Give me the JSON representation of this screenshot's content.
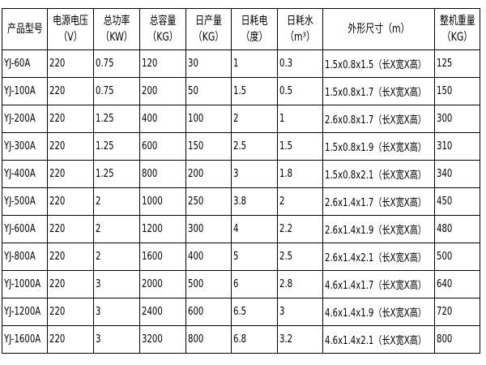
{
  "table": {
    "header": [
      [
        "产品型号"
      ],
      [
        "电源电压",
        "（V）"
      ],
      [
        "总功率",
        "（KW）"
      ],
      [
        "总容量",
        "（KG）"
      ],
      [
        "日产量",
        "（KG）"
      ],
      [
        "日耗电",
        "（度）"
      ],
      [
        "日耗水",
        "（m³）"
      ],
      [
        "外形尺寸（m）"
      ],
      [
        "整机重量",
        "（KG）"
      ]
    ],
    "rows": [
      [
        "YJ-60A",
        "220",
        "0.75",
        "120",
        "30",
        "1",
        "0.3",
        "1.5x0.8x1.5（长X宽X高）",
        "125"
      ],
      [
        "YJ-100A",
        "220",
        "0.75",
        "200",
        "50",
        "1.5",
        "0.5",
        "1.5x0.8x1.7（长X宽X高）",
        "150"
      ],
      [
        "YJ-200A",
        "220",
        "1.25",
        "400",
        "100",
        "2",
        "1",
        "2.6x0.8x1.7（长X宽X高）",
        "300"
      ],
      [
        "YJ-300A",
        "220",
        "1.25",
        "600",
        "150",
        "2.5",
        "1.5",
        "1.5x0.8x1.9（长X宽X高）",
        "310"
      ],
      [
        "YJ-400A",
        "220",
        "1.25",
        "800",
        "200",
        "3",
        "1.8",
        "1.5x0.8x2.1（长X宽X高）",
        "340"
      ],
      [
        "YJ-500A",
        "220",
        "2",
        "1000",
        "250",
        "3.8",
        "2",
        "2.6x1.4x1.7（长X宽X高）",
        "450"
      ],
      [
        "YJ-600A",
        "220",
        "2",
        "1200",
        "300",
        "4",
        "2.2",
        "2.6x1.4x1.9（长X宽X高）",
        "480"
      ],
      [
        "YJ-800A",
        "220",
        "2",
        "1600",
        "400",
        "5",
        "2.5",
        "2.6x1.4x2.1（长X宽X高）",
        "500"
      ],
      [
        "YJ-1000A",
        "220",
        "3",
        "2000",
        "500",
        "6",
        "2.8",
        "4.6x1.4x1.7（长X宽X高）",
        "640"
      ],
      [
        "YJ-1200A",
        "220",
        "3",
        "2400",
        "600",
        "6.5",
        "3",
        "4.6x1.4x1.9（长X宽X高）",
        "720"
      ],
      [
        "YJ-1600A",
        "220",
        "3",
        "3200",
        "800",
        "6.8",
        "3.2",
        "4.6x1.4x2.1（长X宽X高）",
        "800"
      ]
    ]
  }
}
